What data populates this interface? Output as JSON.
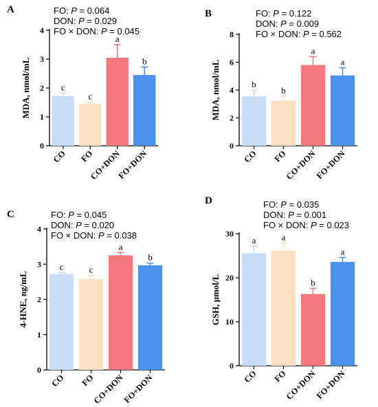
{
  "colors": {
    "CO": "#c8dcf5",
    "FO": "#fde0c4",
    "CO+DON": "#f4777d",
    "FO+DON": "#4b91ee",
    "axis": "#000000"
  },
  "chart_data": [
    {
      "panel": "A",
      "type": "bar",
      "title": "",
      "stats": [
        {
          "factor": "FO: ",
          "p": "0.064"
        },
        {
          "factor": "DON: ",
          "p": "0.029"
        },
        {
          "factor": "FO × DON: ",
          "p": "0.045"
        }
      ],
      "ylabel": "MDA, nmol/mL",
      "xlabel": "",
      "ylim": [
        0,
        4
      ],
      "yticks": [
        0,
        1,
        2,
        3,
        4
      ],
      "categories": [
        "CO",
        "FO",
        "CO+DON",
        "FO+DON"
      ],
      "values": [
        1.72,
        1.45,
        3.05,
        2.45
      ],
      "errors": [
        0.1,
        0.06,
        0.45,
        0.28
      ],
      "letters": [
        "c",
        "c",
        "a",
        "b"
      ]
    },
    {
      "panel": "B",
      "type": "bar",
      "title": "",
      "stats": [
        {
          "factor": "FO: ",
          "p": "0.122"
        },
        {
          "factor": "DON: ",
          "p": "0.009"
        },
        {
          "factor": "FO × DON: ",
          "p": "0.562"
        }
      ],
      "ylabel": "MDA, nmol/mL",
      "xlabel": "",
      "ylim": [
        0,
        8
      ],
      "yticks": [
        0,
        2,
        4,
        6,
        8
      ],
      "categories": [
        "CO",
        "FO",
        "CO+DON",
        "FO+DON"
      ],
      "values": [
        3.55,
        3.25,
        5.8,
        5.05
      ],
      "errors": [
        0.45,
        0.3,
        0.6,
        0.55
      ],
      "letters": [
        "b",
        "b",
        "a",
        "a"
      ]
    },
    {
      "panel": "C",
      "type": "bar",
      "title": "",
      "stats": [
        {
          "factor": "FO: ",
          "p": "0.045"
        },
        {
          "factor": "DON: ",
          "p": "0.020"
        },
        {
          "factor": "FO × DON: ",
          "p": "0.038"
        }
      ],
      "ylabel": "4-HNE, ng/mL",
      "xlabel": "",
      "ylim": [
        0,
        4
      ],
      "yticks": [
        0,
        1,
        2,
        3,
        4
      ],
      "categories": [
        "CO",
        "FO",
        "CO+DON",
        "FO+DON"
      ],
      "values": [
        2.72,
        2.58,
        3.25,
        2.97
      ],
      "errors": [
        0.04,
        0.1,
        0.08,
        0.06
      ],
      "letters": [
        "c",
        "c",
        "a",
        "b"
      ]
    },
    {
      "panel": "D",
      "type": "bar",
      "title": "",
      "stats": [
        {
          "factor": "FO: ",
          "p": "0.035"
        },
        {
          "factor": "DON: ",
          "p": "0.001"
        },
        {
          "factor": "FO × DON: ",
          "p": "0.023"
        }
      ],
      "ylabel": "GSH, μmol/L",
      "xlabel": "",
      "ylim": [
        0,
        30
      ],
      "yticks": [
        0,
        10,
        20,
        30
      ],
      "categories": [
        "CO",
        "FO",
        "CO+DON",
        "FO+DON"
      ],
      "values": [
        25.6,
        26.2,
        16.3,
        23.6
      ],
      "errors": [
        1.6,
        1.7,
        1.3,
        1.0
      ],
      "letters": [
        "a",
        "a",
        "b",
        "a"
      ]
    }
  ]
}
